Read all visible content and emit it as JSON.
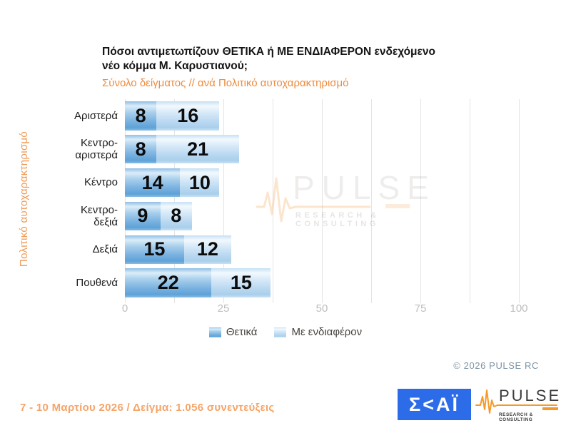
{
  "chart_data": {
    "type": "bar",
    "orientation": "horizontal_stacked",
    "title": "Πόσοι αντιμετωπίζουν ΘΕΤΙΚΑ ή ΜΕ ΕΝΔΙΑΦΕΡΟΝ ενδεχόμενο νέο κόμμα Μ. Καρυστιανού;",
    "title_lines": [
      "Πόσοι αντιμετωπίζουν ΘΕΤΙΚΑ ή ΜΕ ΕΝΔΙΑΦΕΡΟΝ ενδεχόμενο",
      "νέο κόμμα Μ. Καρυστιανού;"
    ],
    "subtitle": "Σύνολο δείγματος // ανά Πολιτικό αυτοχαρακτηρισμό",
    "xlabel": "",
    "ylabel": "Πολιτικό αυτοχαρακτηρισμό",
    "categories": [
      "Αριστερά",
      "Κεντρο-\nαριστερά",
      "Κέντρο",
      "Κεντρο-\nδεξιά",
      "Δεξιά",
      "Πουθενά"
    ],
    "series": [
      {
        "name": "Θετικά",
        "color": "#7DB4E2",
        "values": [
          8,
          8,
          14,
          9,
          15,
          22
        ]
      },
      {
        "name": "Με ενδιαφέρον",
        "color": "#CDE4F6",
        "values": [
          16,
          21,
          10,
          8,
          12,
          15
        ]
      }
    ],
    "xlim": [
      0,
      100
    ],
    "x_ticks": [
      0,
      25,
      50,
      75,
      100
    ],
    "gridline_step": 12.5,
    "grid": true,
    "legend_position": "bottom-center"
  },
  "watermark": {
    "brand": "PULSE",
    "tagline": "RESEARCH & CONSULTING"
  },
  "footer": {
    "copyright": "© 2026 PULSE RC",
    "survey_info": "7 - 10 Μαρτίου 2026 / Δείγμα: 1.056 συνεντεύξεις",
    "skai_logo_text": "Σ<ΑΪ"
  },
  "pulse_logo": {
    "brand": "PULSE",
    "tagline": "RESEARCH & CONSULTING"
  },
  "colors": {
    "title_text": "#141414",
    "subtitle_orange": "#ED8B3E",
    "y_label_orange": "#F09A57",
    "survey_info_orange": "#F5A468",
    "bar_positive_blue": "#7DB4E2",
    "bar_interested_blue": "#CDE4F6",
    "value_text": "#0C0C0C",
    "gridline": "#E4E4E4",
    "tick_label": "#BDBDBD",
    "legend_text": "#46413D",
    "copyright_text": "#7E93A5",
    "skai_blue": "#2D6CE8",
    "pulse_orange": "#F59A2A",
    "pulse_dark": "#3A3A3A",
    "background": "#FFFFFF"
  }
}
